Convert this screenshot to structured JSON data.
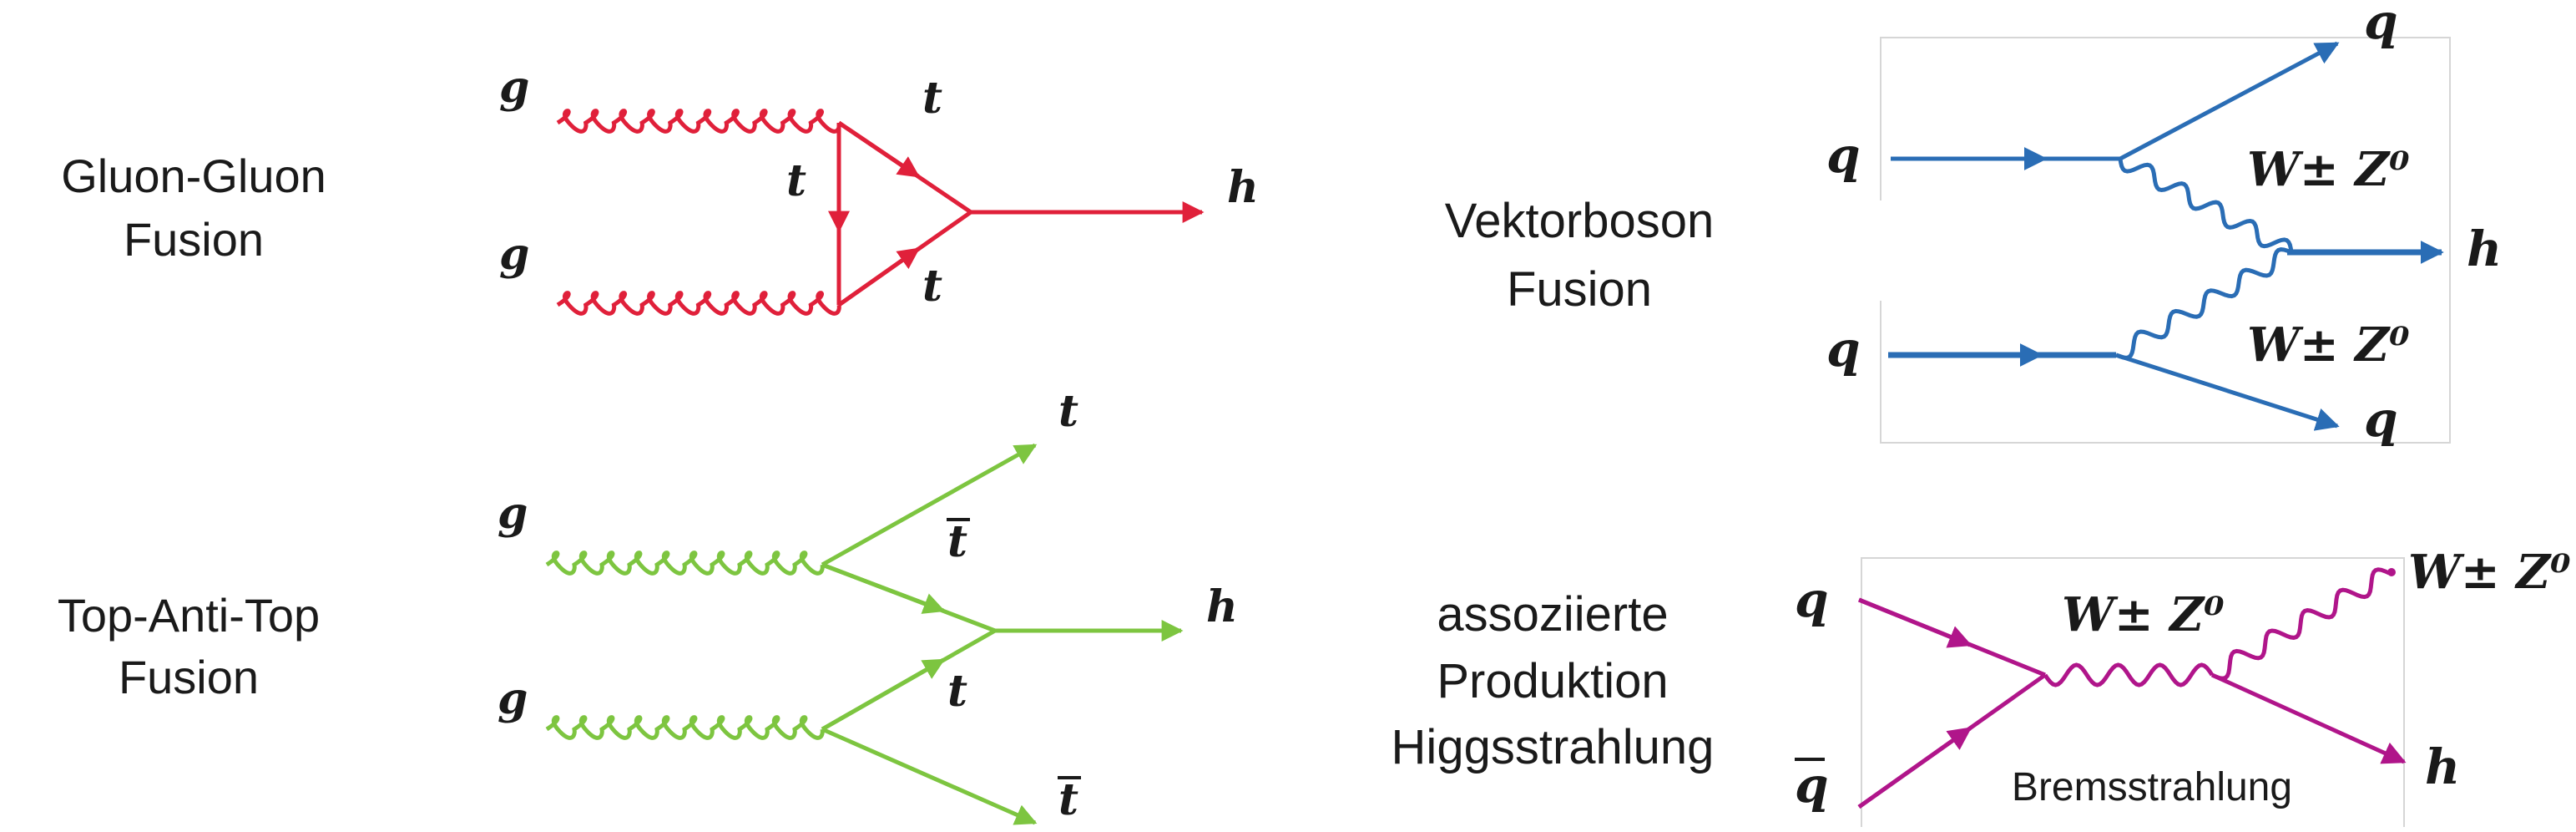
{
  "diagrams": {
    "ggf": {
      "title_line1": "Gluon-Gluon",
      "title_line2": "Fusion",
      "g_top": "g",
      "g_bottom": "g",
      "t_top": "t",
      "t_mid": "t",
      "t_bottom": "t",
      "h": "h",
      "color": "#e0203a"
    },
    "tth": {
      "title_line1": "Top-Anti-Top",
      "title_line2": "Fusion",
      "g_top": "g",
      "g_bottom": "g",
      "t_top": "t",
      "tbar_mid": "t",
      "t_mid": "t",
      "tbar_bottom": "t",
      "h": "h",
      "color": "#7dc540"
    },
    "vbf": {
      "title_line1": "Vektorboson",
      "title_line2": "Fusion",
      "q_in_top": "q",
      "q_in_bottom": "q",
      "q_out_top": "q",
      "q_out_bottom": "q",
      "boson_top": "W± Z⁰",
      "boson_bottom": "W± Z⁰",
      "h": "h",
      "color": "#2a6db5"
    },
    "vh": {
      "title_line1": "assoziierte",
      "title_line2": "Produktion",
      "title_line3": "Higgsstrahlung",
      "q_in": "q",
      "qbar_in": "q",
      "boson_mid": "W± Z⁰",
      "boson_out": "W± Z⁰",
      "h": "h",
      "caption": "Bremsstrahlung",
      "color": "#b0158a"
    }
  }
}
